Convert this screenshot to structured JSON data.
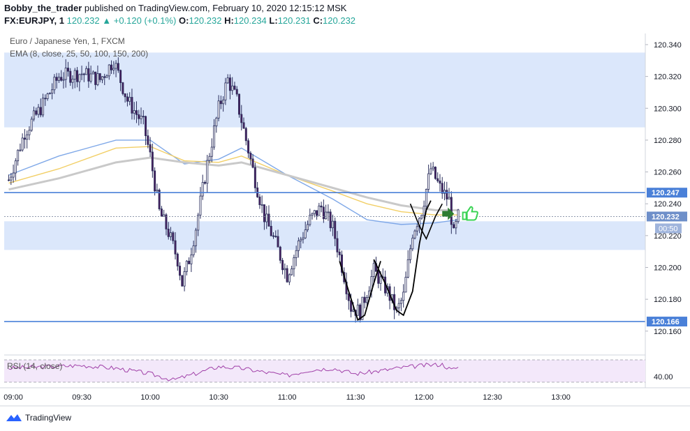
{
  "header": {
    "author": "Bobby_the_trader",
    "published_text": "published on TradingView.com, February 10, 2020 12:15:12 MSK",
    "symbol": "FX:EURJPY, 1",
    "last": "120.232",
    "change": "+0.120 (+0.1%)",
    "o_label": "O:",
    "o": "120.232",
    "h_label": "H:",
    "h": "120.234",
    "l_label": "L:",
    "l": "120.231",
    "c_label": "C:",
    "c": "120.232"
  },
  "legend": {
    "instrument": "Euro / Japanese Yen, 1, FXCM",
    "ema": "EMA (8, close, 25, 50, 100, 150, 200)",
    "rsi": "RSI (14, close)"
  },
  "footer": {
    "brand": "TradingView"
  },
  "colors": {
    "candle": "#2a2e5c",
    "candle_down": "#4a1f5e",
    "zone": "#dbe7fb",
    "hline": "#4a80d8",
    "ema_fast": "#7fa8e8",
    "ema_mid": "#f2cf66",
    "ema_slow": "#c9c9c9",
    "rsi_line": "#a040a8",
    "rsi_band": "#f3e8fa",
    "arrow": "#2e7d32",
    "thumb": "#39d353"
  },
  "chart_data": {
    "type": "candlestick",
    "title": "Euro / Japanese Yen, 1, FXCM",
    "xlabel": "",
    "ylabel": "",
    "ylim": [
      120.145,
      120.347
    ],
    "xlim": [
      "08:56",
      "13:37"
    ],
    "x_ticks": [
      "09:00",
      "09:30",
      "10:00",
      "10:30",
      "11:00",
      "11:30",
      "12:00",
      "12:30",
      "13:00"
    ],
    "y_ticks": [
      "120.340",
      "120.320",
      "120.300",
      "120.280",
      "120.260",
      "120.240",
      "120.220",
      "120.200",
      "120.180",
      "120.160"
    ],
    "horizontal_lines": [
      {
        "label": "120.247",
        "value": 120.247
      },
      {
        "label": "120.166",
        "value": 120.166
      }
    ],
    "current_price": {
      "label": "120.232",
      "value": 120.232,
      "countdown": "00:50"
    },
    "zones": [
      {
        "from": 120.288,
        "to": 120.335
      },
      {
        "from": 120.211,
        "to": 120.229
      }
    ],
    "price_path": [
      [
        "08:58",
        120.255
      ],
      [
        "09:05",
        120.285
      ],
      [
        "09:12",
        120.3
      ],
      [
        "09:20",
        120.32
      ],
      [
        "09:30",
        120.322
      ],
      [
        "09:38",
        120.318
      ],
      [
        "09:44",
        120.33
      ],
      [
        "09:50",
        120.305
      ],
      [
        "09:57",
        120.29
      ],
      [
        "10:00",
        120.27
      ],
      [
        "10:04",
        120.235
      ],
      [
        "10:08",
        120.222
      ],
      [
        "10:12",
        120.205
      ],
      [
        "10:14",
        120.19
      ],
      [
        "10:17",
        120.205
      ],
      [
        "10:20",
        120.225
      ],
      [
        "10:25",
        120.265
      ],
      [
        "10:30",
        120.3
      ],
      [
        "10:34",
        120.318
      ],
      [
        "10:38",
        120.305
      ],
      [
        "10:42",
        120.28
      ],
      [
        "10:46",
        120.255
      ],
      [
        "10:50",
        120.232
      ],
      [
        "10:55",
        120.215
      ],
      [
        "11:00",
        120.195
      ],
      [
        "11:05",
        120.215
      ],
      [
        "11:10",
        120.23
      ],
      [
        "11:15",
        120.238
      ],
      [
        "11:20",
        120.225
      ],
      [
        "11:25",
        120.195
      ],
      [
        "11:28",
        120.175
      ],
      [
        "11:32",
        120.172
      ],
      [
        "11:38",
        120.198
      ],
      [
        "11:44",
        120.185
      ],
      [
        "11:48",
        120.172
      ],
      [
        "11:51",
        120.182
      ],
      [
        "11:55",
        120.222
      ],
      [
        "11:59",
        120.236
      ],
      [
        "12:03",
        120.262
      ],
      [
        "12:07",
        120.25
      ],
      [
        "12:11",
        120.242
      ],
      [
        "12:13",
        120.22
      ],
      [
        "12:15",
        120.232
      ]
    ],
    "ema_series": [
      {
        "values": [
          [
            "08:58",
            120.258
          ],
          [
            "09:20",
            120.27
          ],
          [
            "09:45",
            120.28
          ],
          [
            "10:00",
            120.28
          ],
          [
            "10:15",
            120.265
          ],
          [
            "10:30",
            120.268
          ],
          [
            "10:40",
            120.275
          ],
          [
            "11:00",
            120.258
          ],
          [
            "11:20",
            120.243
          ],
          [
            "11:35",
            120.23
          ],
          [
            "11:50",
            120.227
          ],
          [
            "12:05",
            120.228
          ],
          [
            "12:15",
            120.23
          ]
        ]
      },
      {
        "values": [
          [
            "08:58",
            120.253
          ],
          [
            "09:20",
            120.262
          ],
          [
            "09:45",
            120.275
          ],
          [
            "10:00",
            120.276
          ],
          [
            "10:15",
            120.267
          ],
          [
            "10:30",
            120.266
          ],
          [
            "10:40",
            120.27
          ],
          [
            "11:00",
            120.258
          ],
          [
            "11:20",
            120.248
          ],
          [
            "11:35",
            120.24
          ],
          [
            "11:50",
            120.235
          ],
          [
            "12:05",
            120.233
          ],
          [
            "12:15",
            120.233
          ]
        ]
      },
      {
        "values": [
          [
            "08:58",
            120.249
          ],
          [
            "09:20",
            120.256
          ],
          [
            "09:45",
            120.266
          ],
          [
            "10:00",
            120.269
          ],
          [
            "10:15",
            120.266
          ],
          [
            "10:30",
            120.264
          ],
          [
            "10:40",
            120.266
          ],
          [
            "11:00",
            120.258
          ],
          [
            "11:20",
            120.25
          ],
          [
            "11:35",
            120.244
          ],
          [
            "11:50",
            120.239
          ],
          [
            "12:05",
            120.236
          ],
          [
            "12:15",
            120.236
          ]
        ]
      }
    ],
    "rsi": {
      "label": "RSI (14, close)",
      "tick": "40.00",
      "ylim": [
        25,
        75
      ],
      "bands": [
        30,
        70
      ],
      "values": [
        [
          "08:58",
          55
        ],
        [
          "09:15",
          58
        ],
        [
          "09:30",
          60
        ],
        [
          "09:45",
          55
        ],
        [
          "10:00",
          45
        ],
        [
          "10:10",
          34
        ],
        [
          "10:18",
          43
        ],
        [
          "10:30",
          58
        ],
        [
          "10:40",
          55
        ],
        [
          "10:50",
          48
        ],
        [
          "11:00",
          42
        ],
        [
          "11:10",
          52
        ],
        [
          "11:20",
          55
        ],
        [
          "11:30",
          45
        ],
        [
          "11:40",
          50
        ],
        [
          "11:50",
          56
        ],
        [
          "12:00",
          60
        ],
        [
          "12:08",
          62
        ],
        [
          "12:12",
          52
        ],
        [
          "12:15",
          57
        ]
      ]
    }
  }
}
